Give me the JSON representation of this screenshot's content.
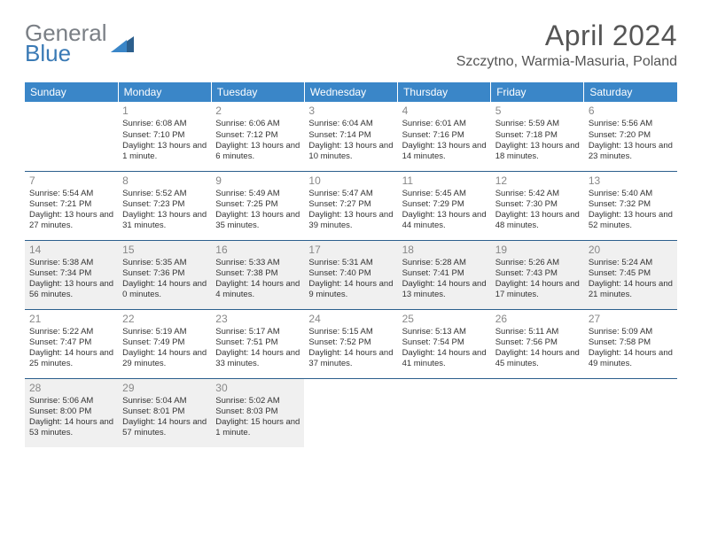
{
  "brand": {
    "line1": "General",
    "line2": "Blue"
  },
  "title": "April 2024",
  "location": "Szczytno, Warmia-Masuria, Poland",
  "colors": {
    "header_bg": "#3a86c8",
    "header_text": "#ffffff",
    "rule": "#2c5f8d",
    "shade": "#f0f0f0",
    "daynum": "#888888",
    "body_text": "#333333",
    "logo_gray": "#7a7f85",
    "logo_blue": "#3a7ab5"
  },
  "fonts": {
    "title_size_pt": 32,
    "location_size_pt": 16,
    "dayheader_size_pt": 12,
    "daynum_size_pt": 12,
    "cell_size_pt": 9.5
  },
  "day_headers": [
    "Sunday",
    "Monday",
    "Tuesday",
    "Wednesday",
    "Thursday",
    "Friday",
    "Saturday"
  ],
  "weeks": [
    [
      null,
      {
        "n": "1",
        "sr": "6:08 AM",
        "ss": "7:10 PM",
        "dl": "13 hours and 1 minute."
      },
      {
        "n": "2",
        "sr": "6:06 AM",
        "ss": "7:12 PM",
        "dl": "13 hours and 6 minutes."
      },
      {
        "n": "3",
        "sr": "6:04 AM",
        "ss": "7:14 PM",
        "dl": "13 hours and 10 minutes."
      },
      {
        "n": "4",
        "sr": "6:01 AM",
        "ss": "7:16 PM",
        "dl": "13 hours and 14 minutes."
      },
      {
        "n": "5",
        "sr": "5:59 AM",
        "ss": "7:18 PM",
        "dl": "13 hours and 18 minutes."
      },
      {
        "n": "6",
        "sr": "5:56 AM",
        "ss": "7:20 PM",
        "dl": "13 hours and 23 minutes."
      }
    ],
    [
      {
        "n": "7",
        "sr": "5:54 AM",
        "ss": "7:21 PM",
        "dl": "13 hours and 27 minutes."
      },
      {
        "n": "8",
        "sr": "5:52 AM",
        "ss": "7:23 PM",
        "dl": "13 hours and 31 minutes."
      },
      {
        "n": "9",
        "sr": "5:49 AM",
        "ss": "7:25 PM",
        "dl": "13 hours and 35 minutes."
      },
      {
        "n": "10",
        "sr": "5:47 AM",
        "ss": "7:27 PM",
        "dl": "13 hours and 39 minutes."
      },
      {
        "n": "11",
        "sr": "5:45 AM",
        "ss": "7:29 PM",
        "dl": "13 hours and 44 minutes."
      },
      {
        "n": "12",
        "sr": "5:42 AM",
        "ss": "7:30 PM",
        "dl": "13 hours and 48 minutes."
      },
      {
        "n": "13",
        "sr": "5:40 AM",
        "ss": "7:32 PM",
        "dl": "13 hours and 52 minutes."
      }
    ],
    [
      {
        "n": "14",
        "sr": "5:38 AM",
        "ss": "7:34 PM",
        "dl": "13 hours and 56 minutes.",
        "shade": true
      },
      {
        "n": "15",
        "sr": "5:35 AM",
        "ss": "7:36 PM",
        "dl": "14 hours and 0 minutes.",
        "shade": true
      },
      {
        "n": "16",
        "sr": "5:33 AM",
        "ss": "7:38 PM",
        "dl": "14 hours and 4 minutes.",
        "shade": true
      },
      {
        "n": "17",
        "sr": "5:31 AM",
        "ss": "7:40 PM",
        "dl": "14 hours and 9 minutes.",
        "shade": true
      },
      {
        "n": "18",
        "sr": "5:28 AM",
        "ss": "7:41 PM",
        "dl": "14 hours and 13 minutes.",
        "shade": true
      },
      {
        "n": "19",
        "sr": "5:26 AM",
        "ss": "7:43 PM",
        "dl": "14 hours and 17 minutes.",
        "shade": true
      },
      {
        "n": "20",
        "sr": "5:24 AM",
        "ss": "7:45 PM",
        "dl": "14 hours and 21 minutes.",
        "shade": true
      }
    ],
    [
      {
        "n": "21",
        "sr": "5:22 AM",
        "ss": "7:47 PM",
        "dl": "14 hours and 25 minutes."
      },
      {
        "n": "22",
        "sr": "5:19 AM",
        "ss": "7:49 PM",
        "dl": "14 hours and 29 minutes."
      },
      {
        "n": "23",
        "sr": "5:17 AM",
        "ss": "7:51 PM",
        "dl": "14 hours and 33 minutes."
      },
      {
        "n": "24",
        "sr": "5:15 AM",
        "ss": "7:52 PM",
        "dl": "14 hours and 37 minutes."
      },
      {
        "n": "25",
        "sr": "5:13 AM",
        "ss": "7:54 PM",
        "dl": "14 hours and 41 minutes."
      },
      {
        "n": "26",
        "sr": "5:11 AM",
        "ss": "7:56 PM",
        "dl": "14 hours and 45 minutes."
      },
      {
        "n": "27",
        "sr": "5:09 AM",
        "ss": "7:58 PM",
        "dl": "14 hours and 49 minutes."
      }
    ],
    [
      {
        "n": "28",
        "sr": "5:06 AM",
        "ss": "8:00 PM",
        "dl": "14 hours and 53 minutes.",
        "shade": true
      },
      {
        "n": "29",
        "sr": "5:04 AM",
        "ss": "8:01 PM",
        "dl": "14 hours and 57 minutes.",
        "shade": true
      },
      {
        "n": "30",
        "sr": "5:02 AM",
        "ss": "8:03 PM",
        "dl": "15 hours and 1 minute.",
        "shade": true
      },
      null,
      null,
      null,
      null
    ]
  ],
  "labels": {
    "sunrise": "Sunrise:",
    "sunset": "Sunset:",
    "daylight": "Daylight:"
  }
}
